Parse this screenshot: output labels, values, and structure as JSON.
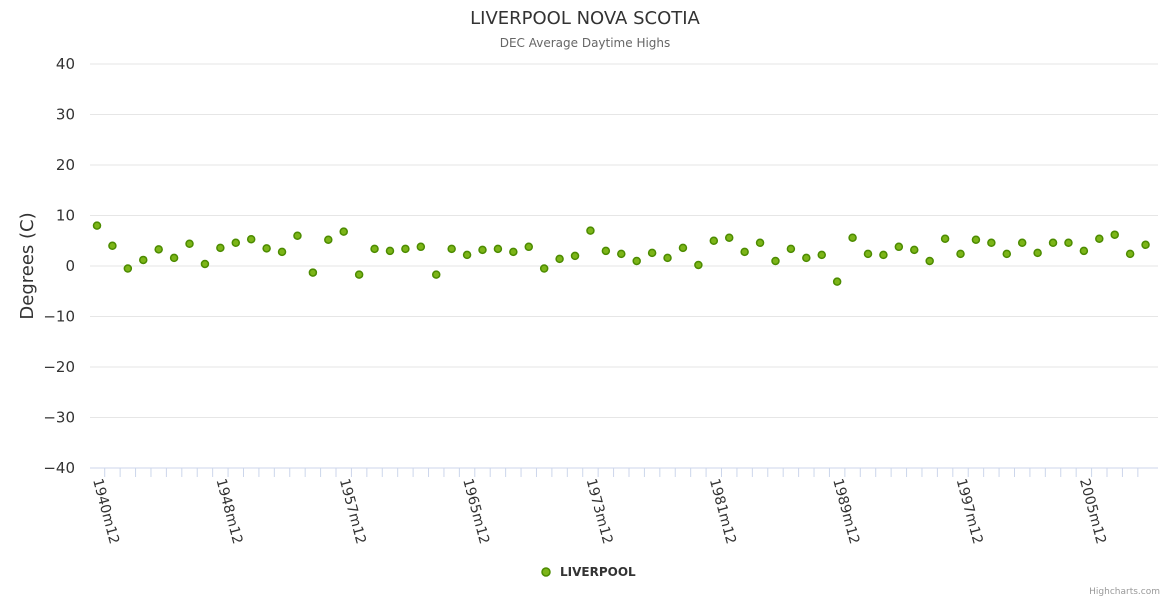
{
  "chart_data": {
    "type": "scatter",
    "title": "LIVERPOOL NOVA SCOTIA",
    "subtitle": "DEC Average Daytime Highs",
    "ylabel": "Degrees (C)",
    "xlabel": "",
    "ylim": [
      -40,
      40
    ],
    "yticks": [
      40,
      30,
      20,
      10,
      0,
      -10,
      -20,
      -30,
      -40
    ],
    "ytick_labels": [
      "40",
      "30",
      "20",
      "10",
      "0",
      "−10",
      "−20",
      "−30",
      "−40"
    ],
    "xtick_labels": [
      "1940m12",
      "1948m12",
      "1957m12",
      "1965m12",
      "1973m12",
      "1981m12",
      "1989m12",
      "1997m12",
      "2005m12"
    ],
    "xtick_label_every": 8,
    "grid": true,
    "legend_position": "bottom-center",
    "series": [
      {
        "name": "LIVERPOOL",
        "color": "#7cb518",
        "values": [
          8.0,
          4.0,
          -0.5,
          1.2,
          3.3,
          1.6,
          4.4,
          0.4,
          3.6,
          4.6,
          5.3,
          3.5,
          2.8,
          6.0,
          -1.3,
          5.2,
          6.8,
          -1.7,
          3.4,
          3.0,
          3.4,
          3.8,
          -1.7,
          3.4,
          2.2,
          3.2,
          3.4,
          2.8,
          3.8,
          -0.5,
          1.4,
          2.0,
          7.0,
          3.0,
          2.4,
          1.0,
          2.6,
          1.6,
          3.6,
          0.2,
          5.0,
          5.6,
          2.8,
          4.6,
          1.0,
          3.4,
          1.6,
          2.2,
          -3.1,
          5.6,
          2.4,
          2.2,
          3.8,
          3.2,
          1.0,
          5.4,
          2.4,
          5.2,
          4.6,
          2.4,
          4.6,
          2.6,
          4.6,
          4.6,
          3.0,
          5.4,
          6.2,
          2.4,
          4.2
        ]
      }
    ]
  },
  "legend": {
    "label": "LIVERPOOL"
  },
  "credits": "Highcharts.com"
}
